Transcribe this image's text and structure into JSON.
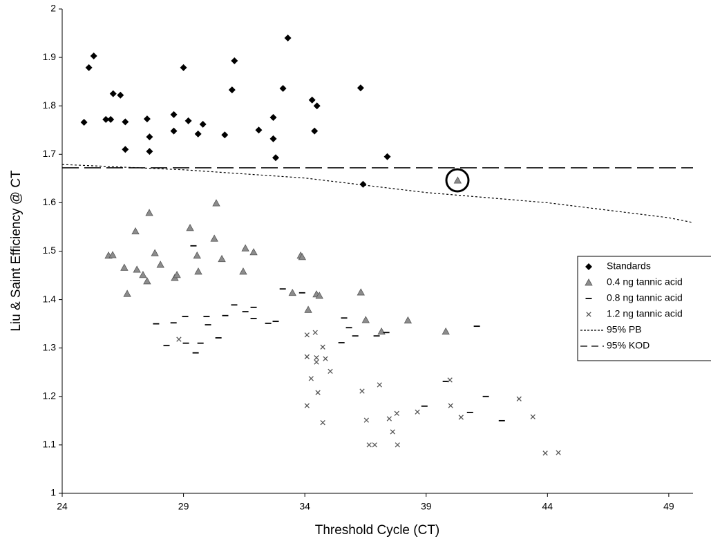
{
  "chart_data": {
    "type": "scatter",
    "x_label": "Threshold Cycle (CT)",
    "y_label": "Liu & Saint Efficiency @ CT",
    "xlim": [
      24,
      50
    ],
    "xticks": [
      24,
      29,
      34,
      39,
      44,
      49
    ],
    "ylim": [
      1,
      2
    ],
    "yticks": [
      1,
      1.1,
      1.2,
      1.3,
      1.4,
      1.5,
      1.6,
      1.7,
      1.8,
      1.9,
      2
    ],
    "grid": false,
    "legend": "right",
    "series": [
      {
        "name": "Standards",
        "color": "#000000",
        "marker": "diamond",
        "x": [
          24.9,
          25.1,
          25.3,
          25.8,
          26.0,
          26.1,
          26.4,
          26.6,
          26.6,
          27.5,
          27.6,
          27.6,
          28.6,
          28.6,
          29.0,
          29.2,
          29.6,
          29.8,
          30.7,
          31.0,
          31.1,
          32.1,
          32.7,
          32.7,
          32.8,
          33.1,
          33.3,
          34.3,
          34.5,
          34.4,
          36.3,
          36.4,
          37.4
        ],
        "values": [
          1.766,
          1.879,
          1.903,
          1.772,
          1.772,
          1.825,
          1.822,
          1.767,
          1.71,
          1.773,
          1.736,
          1.706,
          1.782,
          1.748,
          1.879,
          1.769,
          1.742,
          1.762,
          1.74,
          1.833,
          1.893,
          1.75,
          1.776,
          1.732,
          1.693,
          1.836,
          1.94,
          1.812,
          1.8,
          1.748,
          1.837,
          1.638,
          1.695
        ]
      },
      {
        "name": "0.4 ng tannic acid",
        "color": "#8c8c8c",
        "marker": "triangle",
        "x": [
          25.91,
          26.08,
          26.56,
          26.68,
          27.02,
          27.08,
          27.33,
          27.5,
          27.59,
          27.82,
          28.05,
          28.64,
          28.73,
          29.27,
          29.56,
          29.61,
          30.27,
          30.35,
          30.58,
          31.55,
          31.46,
          31.89,
          33.83,
          33.89,
          33.49,
          34.14,
          34.48,
          34.6,
          36.31,
          36.51,
          37.16,
          38.25,
          39.81,
          40.3
        ],
        "values": [
          1.491,
          1.492,
          1.466,
          1.412,
          1.541,
          1.462,
          1.451,
          1.438,
          1.579,
          1.496,
          1.472,
          1.445,
          1.451,
          1.548,
          1.491,
          1.458,
          1.526,
          1.599,
          1.484,
          1.506,
          1.458,
          1.498,
          1.491,
          1.488,
          1.414,
          1.379,
          1.411,
          1.408,
          1.415,
          1.358,
          1.334,
          1.357,
          1.334,
          1.646
        ]
      },
      {
        "name": "0.8 ng tannic acid",
        "color": "#000000",
        "marker": "dash",
        "x": [
          27.87,
          28.3,
          28.59,
          29.07,
          29.1,
          29.5,
          29.41,
          29.7,
          29.95,
          30.01,
          30.44,
          30.72,
          31.09,
          31.55,
          31.89,
          31.89,
          32.49,
          32.8,
          33.09,
          33.89,
          35.62,
          35.51,
          35.82,
          36.08,
          36.96,
          37.36,
          38.93,
          39.81,
          40.81,
          41.09,
          41.46,
          42.12
        ],
        "values": [
          1.35,
          1.305,
          1.352,
          1.365,
          1.31,
          1.29,
          1.511,
          1.31,
          1.365,
          1.348,
          1.321,
          1.367,
          1.389,
          1.375,
          1.384,
          1.361,
          1.351,
          1.355,
          1.422,
          1.414,
          1.362,
          1.311,
          1.342,
          1.325,
          1.325,
          1.332,
          1.18,
          1.231,
          1.167,
          1.345,
          1.2,
          1.15
        ]
      },
      {
        "name": "1.2 ng tannic acid",
        "color": "#555555",
        "marker": "cross",
        "x": [
          28.81,
          34.09,
          34.43,
          34.09,
          34.48,
          34.48,
          34.74,
          34.85,
          35.05,
          34.26,
          34.54,
          34.09,
          34.74,
          36.36,
          36.54,
          36.65,
          36.88,
          37.08,
          37.48,
          37.62,
          37.79,
          37.82,
          38.64,
          39.98,
          40.01,
          40.44,
          42.83,
          43.4,
          43.91,
          44.45
        ],
        "values": [
          1.318,
          1.327,
          1.332,
          1.282,
          1.28,
          1.271,
          1.302,
          1.278,
          1.252,
          1.237,
          1.208,
          1.181,
          1.146,
          1.211,
          1.151,
          1.1,
          1.1,
          1.224,
          1.154,
          1.127,
          1.165,
          1.1,
          1.168,
          1.234,
          1.181,
          1.157,
          1.195,
          1.158,
          1.083,
          1.084
        ]
      },
      {
        "name": "95% PB",
        "color": "#000000",
        "marker": "dotted",
        "x": [
          24,
          29,
          34,
          39,
          44,
          49,
          50
        ],
        "values": [
          1.679,
          1.668,
          1.651,
          1.621,
          1.6,
          1.569,
          1.559
        ]
      },
      {
        "name": "95% KOD",
        "color": "#000000",
        "marker": "dashed",
        "x": [
          24,
          50
        ],
        "values": [
          1.672,
          1.672
        ]
      }
    ]
  }
}
